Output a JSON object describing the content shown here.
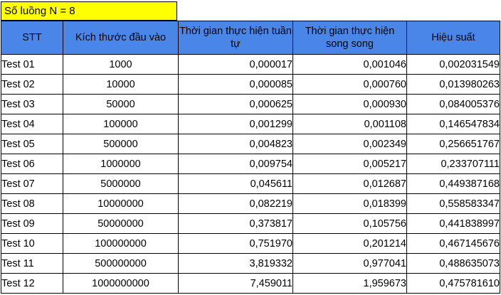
{
  "threads_label": "Số luồng N = 8",
  "headers": {
    "stt": "STT",
    "input_size": "Kích thước đầu vào",
    "sequential_time": "Thời gian thực hiện tuần tự",
    "parallel_time": "Thời gian thực hiện song song",
    "efficiency": "Hiệu suất"
  },
  "rows": [
    {
      "stt": "Test 01",
      "size": "1000",
      "seq": "0,000017",
      "par": "0,001046",
      "eff": "0,002031549"
    },
    {
      "stt": "Test 02",
      "size": "10000",
      "seq": "0,000085",
      "par": "0,000760",
      "eff": "0,013980263"
    },
    {
      "stt": "Test 03",
      "size": "50000",
      "seq": "0,000625",
      "par": "0,000930",
      "eff": "0,084005376"
    },
    {
      "stt": "Test 04",
      "size": "100000",
      "seq": "0,001299",
      "par": "0,001108",
      "eff": "0,146547834"
    },
    {
      "stt": "Test 05",
      "size": "500000",
      "seq": "0,004823",
      "par": "0,002349",
      "eff": "0,256651767"
    },
    {
      "stt": "Test 06",
      "size": "1000000",
      "seq": "0,009754",
      "par": "0,005217",
      "eff": "0,233707111"
    },
    {
      "stt": "Test 07",
      "size": "5000000",
      "seq": "0,045611",
      "par": "0,012687",
      "eff": "0,449387168"
    },
    {
      "stt": "Test 08",
      "size": "10000000",
      "seq": "0,082219",
      "par": "0,018399",
      "eff": "0,558583347"
    },
    {
      "stt": "Test 09",
      "size": "50000000",
      "seq": "0,373817",
      "par": "0,105756",
      "eff": "0,441838997"
    },
    {
      "stt": "Test 10",
      "size": "100000000",
      "seq": "0,751970",
      "par": "0,201214",
      "eff": "0,467145676"
    },
    {
      "stt": "Test 11",
      "size": "500000000",
      "seq": "3,819332",
      "par": "0,977041",
      "eff": "0,488635073"
    },
    {
      "stt": "Test 12",
      "size": "1000000000",
      "seq": "7,459011",
      "par": "1,959673",
      "eff": "0,475781610"
    }
  ],
  "colors": {
    "header_bg": "#4a86e8",
    "threads_label_bg": "#ffff00"
  }
}
